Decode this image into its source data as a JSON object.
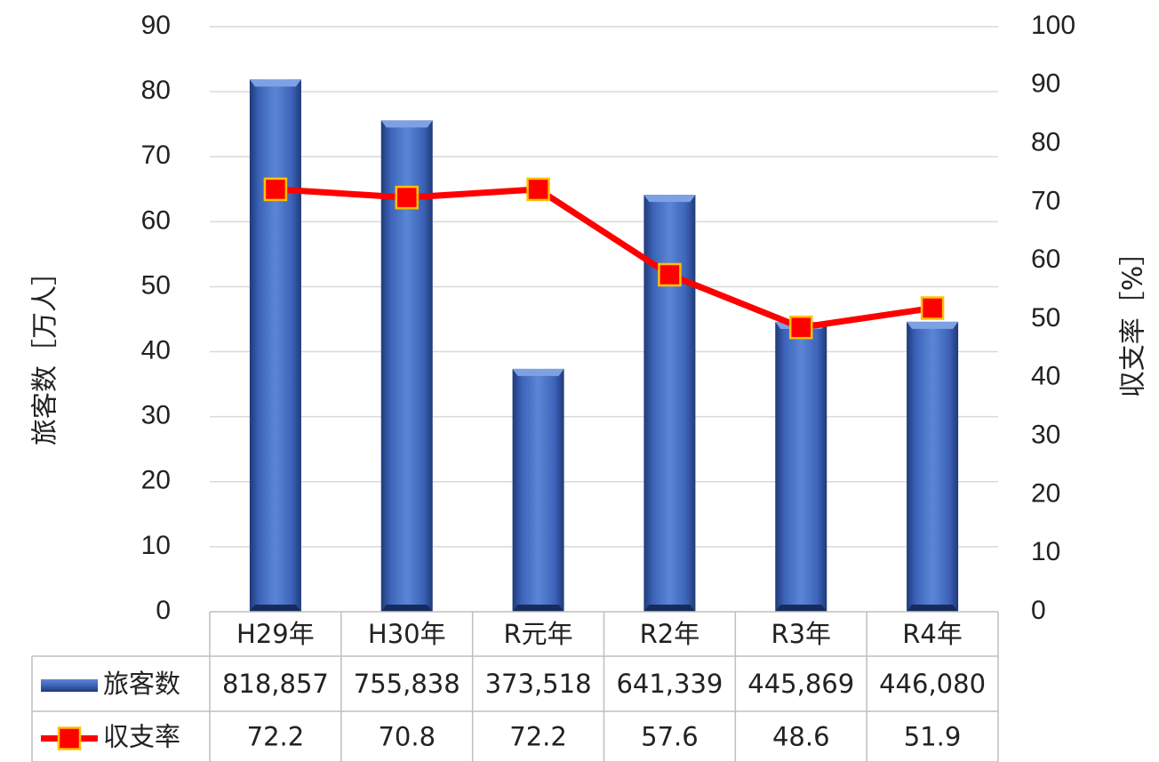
{
  "chart_data": {
    "type": "bar",
    "categories": [
      "H29年",
      "H30年",
      "R元年",
      "R2年",
      "R3年",
      "R4年"
    ],
    "series": [
      {
        "name": "旅客数",
        "type": "bar",
        "axis": "left",
        "values": [
          81.8857,
          75.5838,
          37.3518,
          64.1339,
          44.5869,
          44.608
        ],
        "table_values": [
          "818,857",
          "755,838",
          "373,518",
          "641,339",
          "445,869",
          "446,080"
        ],
        "color": "#4472c4"
      },
      {
        "name": "収支率",
        "type": "line",
        "axis": "right",
        "values": [
          72.2,
          70.8,
          72.2,
          57.6,
          48.6,
          51.9
        ],
        "table_values": [
          "72.2",
          "70.8",
          "72.2",
          "57.6",
          "48.6",
          "51.9"
        ],
        "color": "#ff0000",
        "marker_color": "#ff0000",
        "marker_edge": "#ffc000"
      }
    ],
    "ylabel": "旅客数［万人］",
    "y2label": "収支率［%］",
    "ylim": [
      0,
      90
    ],
    "y2lim": [
      0,
      100
    ],
    "yticks": [
      "0",
      "10",
      "20",
      "30",
      "40",
      "50",
      "60",
      "70",
      "80",
      "90"
    ],
    "y2ticks": [
      "0",
      "10",
      "20",
      "30",
      "40",
      "50",
      "60",
      "70",
      "80",
      "90",
      "100"
    ],
    "grid": true,
    "legend": "data-table"
  }
}
